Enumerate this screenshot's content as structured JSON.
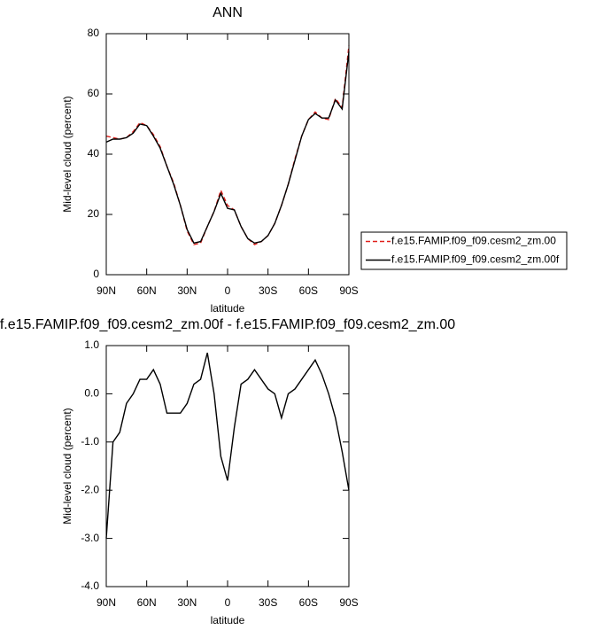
{
  "chart_data": [
    {
      "type": "line",
      "title": "ANN",
      "x_label": "latitude",
      "y_label": "Mid-level cloud (percent)",
      "x": [
        90,
        85,
        80,
        75,
        70,
        65,
        60,
        55,
        50,
        45,
        40,
        35,
        30,
        25,
        20,
        15,
        10,
        5,
        0,
        -5,
        -10,
        -15,
        -20,
        -25,
        -30,
        -35,
        -40,
        -45,
        -50,
        -55,
        -60,
        -65,
        -70,
        -75,
        -80,
        -85,
        -90
      ],
      "series": [
        {
          "name": "f.e15.FAMIP.f09_f09.cesm2_zm.00",
          "color": "#e0201b",
          "dash": true,
          "values": [
            46,
            45.5,
            45,
            45.5,
            47.5,
            50.5,
            49.5,
            46.5,
            42.5,
            36,
            30.5,
            23,
            14.5,
            10,
            10.5,
            16,
            21,
            28,
            23,
            21.5,
            16,
            12,
            10,
            11,
            13,
            17,
            23,
            30,
            38.5,
            46,
            51.5,
            54,
            52,
            51.5,
            58.5,
            55.5,
            76
          ]
        },
        {
          "name": "f.e15.FAMIP.f09_f09.cesm2_zm.00f",
          "color": "#000000",
          "dash": false,
          "values": [
            44,
            45,
            45,
            45.5,
            47,
            50,
            49.5,
            46,
            42,
            36,
            30,
            23,
            15,
            10.5,
            11,
            16,
            21,
            27,
            22,
            21.5,
            16,
            12,
            10.5,
            11,
            13,
            17,
            23,
            30,
            38,
            46,
            51.5,
            53.5,
            52,
            52,
            58,
            55,
            74
          ]
        }
      ],
      "xlim": [
        90,
        -90
      ],
      "xticks": [
        {
          "value": 90,
          "label": "90N"
        },
        {
          "value": 60,
          "label": "60N"
        },
        {
          "value": 30,
          "label": "30N"
        },
        0,
        {
          "value": -30,
          "label": "30S"
        },
        {
          "value": -60,
          "label": "60S"
        },
        {
          "value": -90,
          "label": "90S"
        }
      ],
      "ylim": [
        0,
        80
      ],
      "yticks": [
        0,
        20,
        40,
        60,
        80
      ],
      "legend": "right"
    },
    {
      "type": "line",
      "title": "f.e15.FAMIP.f09_f09.cesm2_zm.00f - f.e15.FAMIP.f09_f09.cesm2_zm.00",
      "x_label": "latitude",
      "y_label": "Mid-level cloud (percent)",
      "x": [
        90,
        85,
        80,
        75,
        70,
        65,
        60,
        55,
        50,
        45,
        40,
        35,
        30,
        25,
        20,
        15,
        10,
        5,
        0,
        -5,
        -10,
        -15,
        -20,
        -25,
        -30,
        -35,
        -40,
        -45,
        -50,
        -55,
        -60,
        -65,
        -70,
        -75,
        -80,
        -85,
        -90
      ],
      "series": [
        {
          "color": "#000000",
          "dash": false,
          "values": [
            -3.0,
            -1.0,
            -0.8,
            -0.2,
            0.0,
            0.3,
            0.3,
            0.5,
            0.2,
            -0.4,
            -0.4,
            -0.4,
            -0.2,
            0.2,
            0.3,
            0.85,
            0.0,
            -1.3,
            -1.8,
            -0.7,
            0.2,
            0.3,
            0.5,
            0.3,
            0.1,
            0.0,
            -0.5,
            0.0,
            0.1,
            0.3,
            0.5,
            0.7,
            0.4,
            0.0,
            -0.5,
            -1.2,
            -2.0
          ]
        }
      ],
      "xlim": [
        90,
        -90
      ],
      "xticks": [
        {
          "value": 90,
          "label": "90N"
        },
        {
          "value": 60,
          "label": "60N"
        },
        {
          "value": 30,
          "label": "30N"
        },
        0,
        {
          "value": -30,
          "label": "30S"
        },
        {
          "value": -60,
          "label": "60S"
        },
        {
          "value": -90,
          "label": "90S"
        }
      ],
      "ylim": [
        -4,
        1
      ],
      "yticks": [
        {
          "value": -4,
          "label": "-4.0"
        },
        {
          "value": -3,
          "label": "-3.0"
        },
        {
          "value": -2,
          "label": "-2.0"
        },
        {
          "value": -1,
          "label": "-1.0"
        },
        {
          "value": 0,
          "label": "0.0"
        },
        {
          "value": 1,
          "label": "1.0"
        }
      ]
    }
  ]
}
